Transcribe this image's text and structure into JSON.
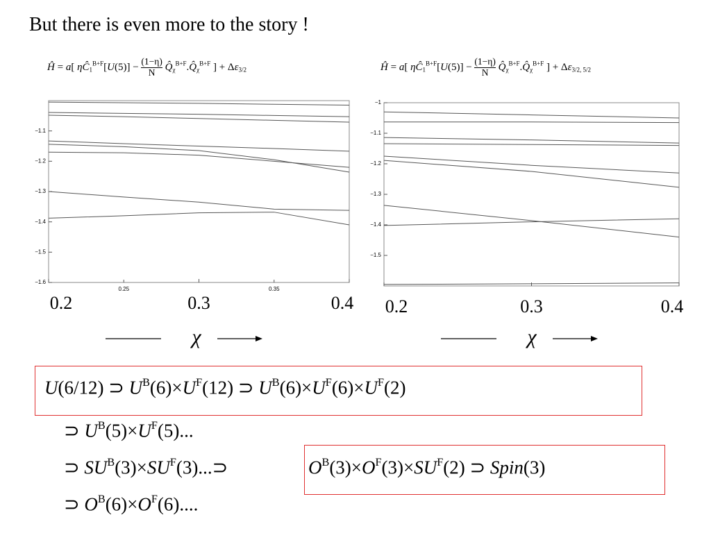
{
  "title": "But there is even more to the story !",
  "chart_data": [
    {
      "type": "line",
      "color": "#555555",
      "equation": [
        {
          "i": "Ĥ"
        },
        " = ",
        {
          "i": "a"
        },
        "[ ",
        {
          "i": "η"
        },
        {
          "i": "Ĉ"
        },
        {
          "sub": "1"
        },
        {
          "sup": "B+F"
        },
        "[",
        {
          "i": "U"
        },
        "(5)] − ",
        {
          "frac": [
            "(1−η)",
            "N"
          ]
        },
        " ",
        {
          "i": "Q̂"
        },
        {
          "sub": "χ"
        },
        {
          "sup": "B+F"
        },
        ".",
        {
          "i": "Q̂"
        },
        {
          "sub": "χ"
        },
        {
          "sup": "B+F"
        },
        " ] + Δ",
        {
          "i": "ε"
        },
        {
          "sub": "3/2"
        }
      ],
      "x_label": "χ",
      "xlim": [
        0.2,
        0.4
      ],
      "ylim": [
        -1.6,
        -1.0
      ],
      "xticks": [
        0.2,
        0.3,
        0.4
      ],
      "minor_xticks": [
        0.25,
        0.35
      ],
      "yticks": [
        {
          "value": -1.1,
          "label": "−1.1"
        },
        {
          "value": -1.2,
          "label": "−1.2"
        },
        {
          "value": -1.3,
          "label": "−1.3"
        },
        {
          "value": -1.4,
          "label": "−1.4"
        },
        {
          "value": -1.5,
          "label": "−1.5"
        },
        {
          "value": -1.6,
          "label": "−1.6"
        }
      ],
      "x": [
        0.2,
        0.25,
        0.3,
        0.35,
        0.4
      ],
      "series": [
        {
          "values": [
            -1.005,
            -1.007,
            -1.009,
            -1.012,
            -1.015
          ]
        },
        {
          "values": [
            -1.039,
            -1.042,
            -1.045,
            -1.049,
            -1.053
          ]
        },
        {
          "values": [
            -1.048,
            -1.053,
            -1.059,
            -1.065,
            -1.071
          ]
        },
        {
          "values": [
            -1.133,
            -1.142,
            -1.15,
            -1.158,
            -1.167
          ]
        },
        {
          "values": [
            -1.144,
            -1.152,
            -1.165,
            -1.195,
            -1.236
          ]
        },
        {
          "values": [
            -1.17,
            -1.172,
            -1.18,
            -1.2,
            -1.22
          ]
        },
        {
          "values": [
            -1.3,
            -1.318,
            -1.335,
            -1.358,
            -1.362
          ]
        },
        {
          "values": [
            -1.388,
            -1.38,
            -1.37,
            -1.368,
            -1.41
          ]
        }
      ]
    },
    {
      "type": "line",
      "color": "#555555",
      "equation": [
        {
          "i": "Ĥ"
        },
        " = ",
        {
          "i": "a"
        },
        "[ ",
        {
          "i": "η"
        },
        {
          "i": "Ĉ"
        },
        {
          "sub": "1"
        },
        {
          "sup": "B+F"
        },
        "[",
        {
          "i": "U"
        },
        "(5)] − ",
        {
          "frac": [
            "(1−η)",
            "N"
          ]
        },
        " ",
        {
          "i": "Q̂"
        },
        {
          "sub": "χ"
        },
        {
          "sup": "B+F"
        },
        ".",
        {
          "i": "Q̂"
        },
        {
          "sub": "χ"
        },
        {
          "sup": "B+F"
        },
        " ] + Δ",
        {
          "i": "ε"
        },
        {
          "sub": "3/2, 5/2"
        }
      ],
      "x_label": "χ",
      "xlim": [
        0.2,
        0.4
      ],
      "ylim": [
        -1.6,
        -1.0
      ],
      "xticks": [
        0.2,
        0.3,
        0.4
      ],
      "yticks": [
        {
          "value": -1.0,
          "label": "−1"
        },
        {
          "value": -1.1,
          "label": "−1.1"
        },
        {
          "value": -1.2,
          "label": "−1.2"
        },
        {
          "value": -1.3,
          "label": "−1.3"
        },
        {
          "value": -1.4,
          "label": "−1.4"
        },
        {
          "value": -1.5,
          "label": "−1.5"
        }
      ],
      "x": [
        0.2,
        0.3,
        0.4
      ],
      "series": [
        {
          "values": [
            -1.03,
            -1.04,
            -1.05
          ]
        },
        {
          "values": [
            -1.063,
            -1.063,
            -1.065
          ]
        },
        {
          "values": [
            -1.114,
            -1.122,
            -1.132
          ]
        },
        {
          "values": [
            -1.134,
            -1.137,
            -1.14
          ]
        },
        {
          "values": [
            -1.175,
            -1.205,
            -1.23
          ]
        },
        {
          "values": [
            -1.189,
            -1.225,
            -1.277
          ]
        },
        {
          "values": [
            -1.336,
            -1.386,
            -1.44
          ]
        },
        {
          "values": [
            -1.402,
            -1.39,
            -1.38
          ]
        },
        {
          "values": [
            -1.595,
            -1.593,
            -1.59
          ]
        }
      ]
    }
  ],
  "chains": [
    [
      {
        "i": "U"
      },
      "(6/12) ⊃ ",
      {
        "i": "U"
      },
      {
        "sup": "B"
      },
      "(6)×",
      {
        "i": "U"
      },
      {
        "sup": "F"
      },
      "(12) ⊃ ",
      {
        "i": "U"
      },
      {
        "sup": "B"
      },
      "(6)×",
      {
        "i": "U"
      },
      {
        "sup": "F"
      },
      "(6)×",
      {
        "i": "U"
      },
      {
        "sup": "F"
      },
      "(2)"
    ],
    [
      "⊃ ",
      {
        "i": "U"
      },
      {
        "sup": "B"
      },
      "(5)×",
      {
        "i": "U"
      },
      {
        "sup": "F"
      },
      "(5)..."
    ],
    [
      "⊃ ",
      {
        "i": "SU"
      },
      {
        "sup": "B"
      },
      "(3)×",
      {
        "i": "SU"
      },
      {
        "sup": "F"
      },
      "(3)...⊃"
    ],
    [
      {
        "i": "O"
      },
      {
        "sup": "B"
      },
      "(3)×",
      {
        "i": "O"
      },
      {
        "sup": "F"
      },
      "(3)×",
      {
        "i": "SU"
      },
      {
        "sup": "F"
      },
      "(2) ⊃ ",
      {
        "i": "Spin"
      },
      "(3)"
    ],
    [
      "⊃ ",
      {
        "i": "O"
      },
      {
        "sup": "B"
      },
      "(6)×",
      {
        "i": "O"
      },
      {
        "sup": "F"
      },
      "(6)...."
    ]
  ]
}
